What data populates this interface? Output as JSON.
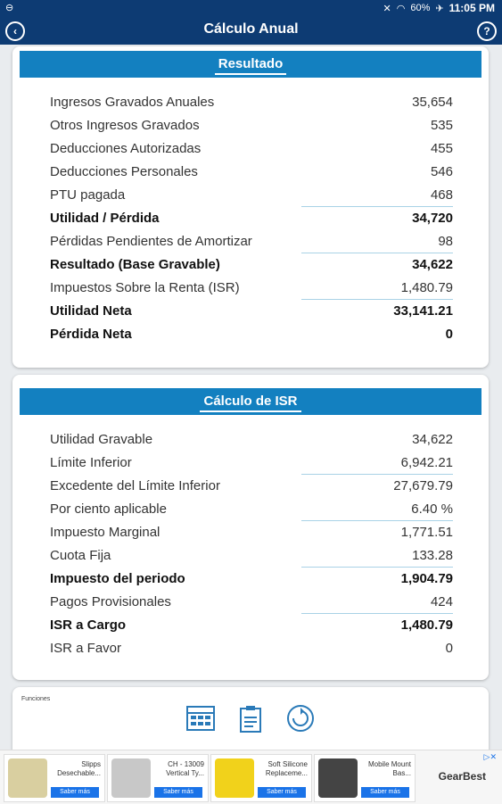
{
  "status_bar": {
    "time": "11:05 PM",
    "battery": "60%"
  },
  "app_bar": {
    "title": "Cálculo Anual",
    "back_symbol": "‹",
    "help_symbol": "?"
  },
  "resultado": {
    "title": "Resultado",
    "rows": [
      {
        "label": "Ingresos Gravados Anuales",
        "value": "35,654",
        "bold": false,
        "underline": false
      },
      {
        "label": "Otros Ingresos Gravados",
        "value": "535",
        "bold": false,
        "underline": false
      },
      {
        "label": "Deducciones Autorizadas",
        "value": "455",
        "bold": false,
        "underline": false
      },
      {
        "label": "Deducciones Personales",
        "value": "546",
        "bold": false,
        "underline": false
      },
      {
        "label": "PTU pagada",
        "value": "468",
        "bold": false,
        "underline": true
      },
      {
        "label": "Utilidad / Pérdida",
        "value": "34,720",
        "bold": true,
        "underline": false
      },
      {
        "label": "Pérdidas Pendientes de Amortizar",
        "value": "98",
        "bold": false,
        "underline": true
      },
      {
        "label": "Resultado (Base Gravable)",
        "value": "34,622",
        "bold": true,
        "underline": false
      },
      {
        "label": "Impuestos Sobre la Renta (ISR)",
        "value": "1,480.79",
        "bold": false,
        "underline": true
      },
      {
        "label": "Utilidad Neta",
        "value": "33,141.21",
        "bold": true,
        "underline": false
      },
      {
        "label": "Pérdida Neta",
        "value": "0",
        "bold": true,
        "underline": false
      }
    ]
  },
  "calculo_isr": {
    "title": "Cálculo de ISR",
    "rows": [
      {
        "label": "Utilidad Gravable",
        "value": "34,622",
        "bold": false,
        "underline": false
      },
      {
        "label": "Límite Inferior",
        "value": "6,942.21",
        "bold": false,
        "underline": true
      },
      {
        "label": "Excedente del Límite Inferior",
        "value": "27,679.79",
        "bold": false,
        "underline": false
      },
      {
        "label": "Por ciento aplicable",
        "value": "6.40 %",
        "bold": false,
        "underline": true
      },
      {
        "label": "Impuesto Marginal",
        "value": "1,771.51",
        "bold": false,
        "underline": false
      },
      {
        "label": "Cuota Fija",
        "value": "133.28",
        "bold": false,
        "underline": true
      },
      {
        "label": "Impuesto del periodo",
        "value": "1,904.79",
        "bold": true,
        "underline": false
      },
      {
        "label": "Pagos Provisionales",
        "value": "424",
        "bold": false,
        "underline": true
      },
      {
        "label": "ISR a Cargo",
        "value": "1,480.79",
        "bold": true,
        "underline": false
      },
      {
        "label": "ISR a Favor",
        "value": "0",
        "bold": false,
        "underline": false
      }
    ]
  },
  "funciones": {
    "label": "Funciones",
    "icons": [
      "calculator-icon",
      "clipboard-icon",
      "refresh-icon"
    ]
  },
  "ads": {
    "items": [
      {
        "text": "Slipps Desechable...",
        "button": "Saber más",
        "color": "#d9cfa0"
      },
      {
        "text": "CH - 13009 Vertical Ty...",
        "button": "Saber más",
        "color": "#c8c8c8"
      },
      {
        "text": "Soft Silicone Replaceme...",
        "button": "Saber más",
        "color": "#f1d21b"
      },
      {
        "text": "Mobile Mount Bas...",
        "button": "Saber más",
        "color": "#444444"
      }
    ],
    "brand": "GearBest",
    "adchoice": "▷✕"
  },
  "colors": {
    "primary": "#0d3b73",
    "header": "#1380c0",
    "underline": "#a9d2e6"
  }
}
